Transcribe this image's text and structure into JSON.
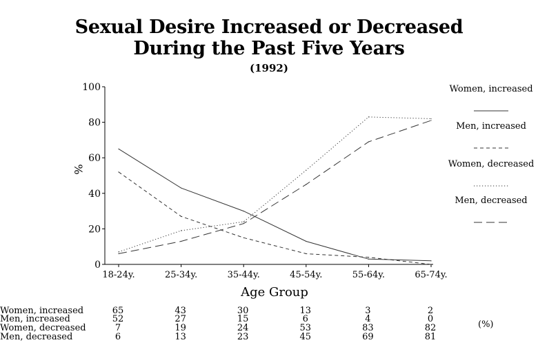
{
  "chart_data": {
    "type": "line",
    "title": "Sexual Desire Increased or Decreased",
    "title_line2": "During the Past Five Years",
    "subtitle": "(1992)",
    "xlabel": "Age Group",
    "ylabel": "%",
    "ylim": [
      0,
      100
    ],
    "yticks": [
      "0",
      "20",
      "40",
      "60",
      "80",
      "100"
    ],
    "categories": [
      "18-24y.",
      "25-34y.",
      "35-44y.",
      "45-54y.",
      "55-64y.",
      "65-74y."
    ],
    "grid": false,
    "legend_position": "right",
    "series": [
      {
        "name": "Women, increased",
        "values": [
          65,
          43,
          30,
          13,
          3,
          2
        ],
        "line_style": "solid",
        "color": "#333333"
      },
      {
        "name": "Men, increased",
        "values": [
          52,
          27,
          15,
          6,
          4,
          0
        ],
        "line_style": "dashed",
        "color": "#333333"
      },
      {
        "name": "Women, decreased",
        "values": [
          7,
          19,
          24,
          53,
          83,
          82
        ],
        "line_style": "dotted",
        "color": "#333333"
      },
      {
        "name": "Men, decreased",
        "values": [
          6,
          13,
          23,
          45,
          69,
          81
        ],
        "line_style": "long-dashed",
        "color": "#333333"
      }
    ],
    "table": {
      "unit": "(%)",
      "rows": [
        {
          "label": "Women, increased",
          "values": [
            "65",
            "43",
            "30",
            "13",
            "3",
            "2"
          ]
        },
        {
          "label": "Men, increased",
          "values": [
            "52",
            "27",
            "15",
            "6",
            "4",
            "0"
          ]
        },
        {
          "label": "Women, decreased",
          "values": [
            "7",
            "19",
            "24",
            "53",
            "83",
            "82"
          ]
        },
        {
          "label": "Men, decreased",
          "values": [
            "6",
            "13",
            "23",
            "45",
            "69",
            "81"
          ]
        }
      ]
    }
  }
}
